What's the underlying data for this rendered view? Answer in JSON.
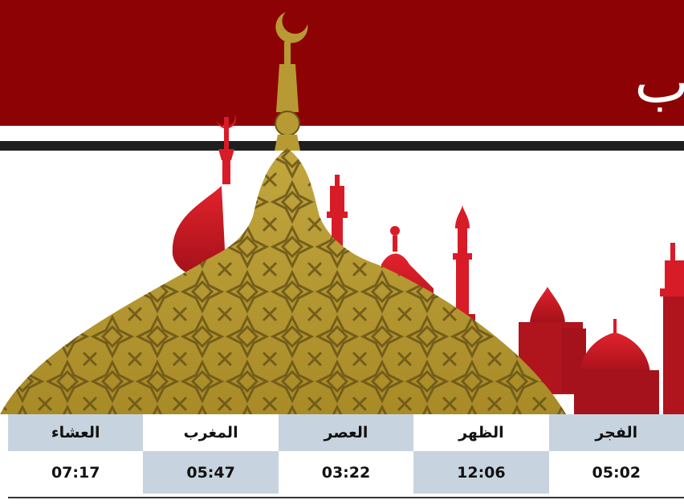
{
  "banner": {
    "title_fragment": "ب"
  },
  "colors": {
    "banner_red": "#8d0305",
    "minaret_red": "#d71c28",
    "dome_gold": "#b79a33",
    "pattern_line": "#6a5418",
    "table_shade": "#c7d4df",
    "divider": "#1f1f1f"
  },
  "prayer_times": {
    "isha": {
      "name": "العشاء",
      "time": "07:17"
    },
    "maghrib": {
      "name": "المغرب",
      "time": "05:47"
    },
    "asr": {
      "name": "العصر",
      "time": "03:22"
    },
    "dhuhr": {
      "name": "الظهر",
      "time": "12:06"
    },
    "fajr": {
      "name": "الفجر",
      "time": "05:02"
    }
  }
}
